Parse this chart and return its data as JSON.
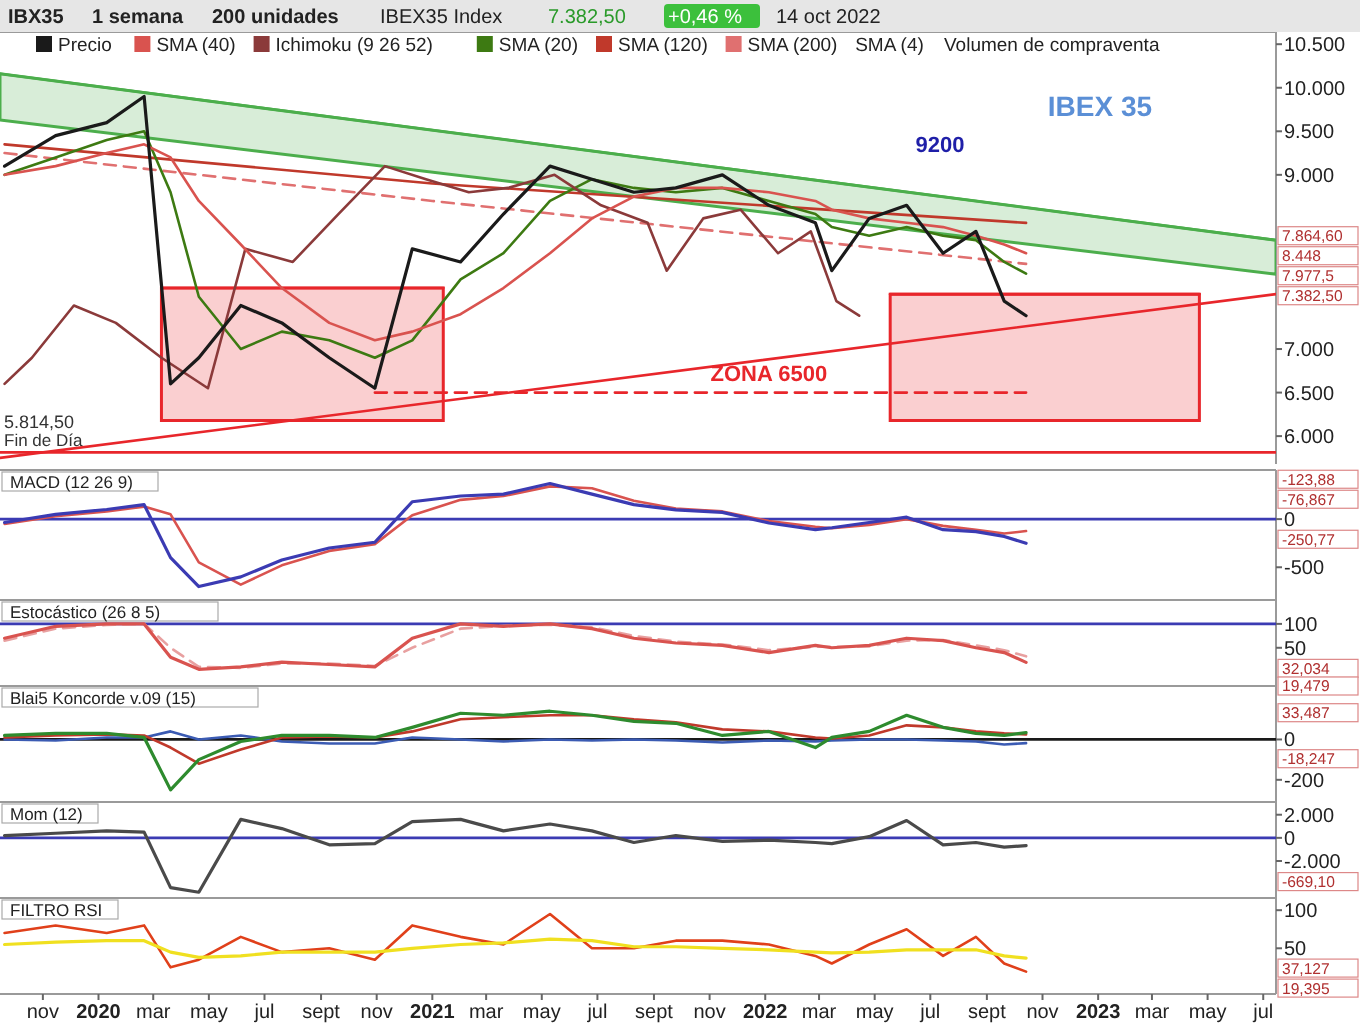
{
  "chart_data": [
    {
      "type": "line",
      "title": "IBEX 35",
      "subtitle": "Fin de Día",
      "legend": "top left",
      "tick_labels": "y",
      "xlim": [
        "2019-09-15",
        "2023-07-15"
      ],
      "ylim": [
        5680,
        10640
      ],
      "yticks": [
        {
          "value": 6000,
          "label": "6.000"
        },
        {
          "value": 6500,
          "label": "6.500"
        },
        {
          "value": 7000,
          "label": "7.000"
        },
        {
          "value": 9000,
          "label": "9.000"
        },
        {
          "value": 9500,
          "label": "9.500"
        },
        {
          "value": 10000,
          "label": "10.000"
        },
        {
          "value": 10500,
          "label": "10.500"
        }
      ],
      "x": [
        "2019-09-20",
        "2019-11-15",
        "2020-01-10",
        "2020-02-20",
        "2020-03-20",
        "2020-04-20",
        "2020-06-05",
        "2020-07-20",
        "2020-09-10",
        "2020-10-30",
        "2020-12-10",
        "2021-02-01",
        "2021-03-20",
        "2021-05-10",
        "2021-06-25",
        "2021-08-10",
        "2021-09-25",
        "2021-11-15",
        "2022-01-05",
        "2022-02-25",
        "2022-03-15",
        "2022-04-25",
        "2022-06-05",
        "2022-07-15",
        "2022-08-20",
        "2022-09-20",
        "2022-10-14"
      ],
      "series": [
        {
          "name": "Precio",
          "color": "#1a1a1a",
          "values": [
            9100,
            9450,
            9600,
            9900,
            6600,
            6900,
            7500,
            7300,
            6900,
            6550,
            8150,
            8000,
            8550,
            9100,
            8950,
            8800,
            8850,
            9000,
            8650,
            8450,
            7900,
            8500,
            8650,
            8100,
            8350,
            7550,
            7382.5
          ]
        },
        {
          "name": "SMA (40)",
          "color": "#d9534f",
          "values": [
            9000,
            9100,
            9250,
            9350,
            9200,
            8700,
            8200,
            7700,
            7300,
            7100,
            7200,
            7400,
            7700,
            8100,
            8500,
            8750,
            8850,
            8850,
            8800,
            8700,
            8600,
            8500,
            8450,
            8400,
            8300,
            8200,
            8100
          ]
        },
        {
          "name": "Ichimoku (9 26 52)",
          "color": "#8b3a3a",
          "x": [
            "2019-09-20",
            "2019-10-20",
            "2019-12-05",
            "2020-01-20",
            "2020-03-10",
            "2020-04-30",
            "2020-06-10",
            "2020-08-01",
            "2020-09-20",
            "2020-11-10",
            "2020-12-25",
            "2021-02-10",
            "2021-03-25",
            "2021-05-15",
            "2021-07-05",
            "2021-08-25",
            "2021-09-15",
            "2021-10-25",
            "2021-12-05",
            "2022-01-15",
            "2022-02-20",
            "2022-03-20",
            "2022-04-14"
          ],
          "values": [
            6600,
            6900,
            7500,
            7300,
            6900,
            6550,
            8150,
            8000,
            8550,
            9100,
            8950,
            8800,
            8850,
            9000,
            8650,
            8450,
            7900,
            8500,
            8600,
            8100,
            8350,
            7550,
            7382.5
          ]
        },
        {
          "name": "SMA (20)",
          "color": "#3d7a12",
          "values": [
            9000,
            9200,
            9400,
            9500,
            8800,
            7600,
            7000,
            7200,
            7100,
            6900,
            7100,
            7800,
            8100,
            8700,
            8950,
            8850,
            8800,
            8850,
            8700,
            8550,
            8400,
            8300,
            8400,
            8300,
            8250,
            8000,
            7864.6
          ]
        },
        {
          "name": "SMA (120)",
          "color": "#c0392b",
          "x": [
            "2019-09-20",
            "2021-01-01",
            "2022-10-14"
          ],
          "values": [
            9350,
            8900,
            8448
          ]
        },
        {
          "name": "SMA (200)",
          "color": "#e07070",
          "line_style": "dashed",
          "x": [
            "2019-09-20",
            "2021-01-01",
            "2022-10-14"
          ],
          "values": [
            9250,
            8700,
            7977.5
          ]
        },
        {
          "color": "#4cae4c",
          "x": [
            "2019-09-15",
            "2023-07-15"
          ],
          "values": [
            10160,
            8250
          ],
          "lower": [
            9630,
            7860
          ],
          "upper": [
            10160,
            8250
          ]
        },
        {
          "color": "#e8262b",
          "x": [
            "2019-09-15",
            "2023-07-15"
          ],
          "values": [
            5750,
            7630
          ]
        },
        {
          "color": "#e8262b",
          "x": [
            "2020-03-10",
            "2021-01-13"
          ],
          "values": [
            7700,
            7700
          ],
          "lower": [
            6180,
            6180
          ],
          "upper": [
            7700,
            7700
          ]
        },
        {
          "color": "#e8262b",
          "x": [
            "2022-05-18",
            "2023-04-22"
          ],
          "values": [
            7630,
            7630
          ],
          "lower": [
            6180,
            6180
          ],
          "upper": [
            7630,
            7630
          ]
        },
        {
          "color": "#e8262b",
          "line_style": "dashed",
          "x": [
            "2020-10-30",
            "2022-10-14"
          ],
          "values": [
            6500,
            6500
          ]
        }
      ],
      "ref_lines": [
        {
          "axis": "y",
          "value": 5814.5,
          "label": "5.814,50",
          "color": "#e8262b"
        }
      ],
      "annotations": [
        "IBX35",
        "1 semana",
        "200 unidades",
        "IBEX35 Index",
        "7.382,50",
        "+0,46 %",
        "14 oct 2022",
        "SMA (4)",
        "Volumen de compraventa",
        "9200",
        "8.448",
        "7.977,5",
        "7.864,60",
        "7.382,50",
        {
          "text": "ZONA 6500",
          "x": "2022-01-05",
          "y": 6500
        }
      ]
    },
    {
      "type": "line",
      "title": "MACD (12 26 9)",
      "tick_labels": "y",
      "xlim": [
        "2019-09-15",
        "2023-07-15"
      ],
      "ylim": [
        -840,
        510
      ],
      "yticks": [
        {
          "value": -500,
          "label": "-500"
        },
        0
      ],
      "x": [
        "2019-09-20",
        "2019-11-15",
        "2020-01-10",
        "2020-02-20",
        "2020-03-20",
        "2020-04-20",
        "2020-06-05",
        "2020-07-20",
        "2020-09-10",
        "2020-10-30",
        "2020-12-10",
        "2021-02-01",
        "2021-03-20",
        "2021-05-10",
        "2021-06-25",
        "2021-08-10",
        "2021-09-25",
        "2021-11-15",
        "2022-01-05",
        "2022-02-25",
        "2022-03-15",
        "2022-04-25",
        "2022-06-05",
        "2022-07-15",
        "2022-08-20",
        "2022-09-20",
        "2022-10-14"
      ],
      "series": [
        {
          "color": "#3b3bb3",
          "values": [
            -35,
            50,
            100,
            150,
            -400,
            -700,
            -600,
            -425,
            -300,
            -240,
            180,
            240,
            260,
            370,
            260,
            150,
            95,
            70,
            -40,
            -110,
            -90,
            -35,
            20,
            -110,
            -130,
            -180,
            -250.77
          ]
        },
        {
          "color": "#d9534f",
          "values": [
            -50,
            30,
            80,
            130,
            50,
            -450,
            -680,
            -480,
            -330,
            -260,
            40,
            200,
            240,
            340,
            320,
            190,
            110,
            80,
            -20,
            -80,
            -95,
            -60,
            0,
            -70,
            -110,
            -150,
            -123.88
          ]
        }
      ],
      "ref_lines": [
        {
          "axis": "y",
          "value": 0,
          "color": "#3b3bb3"
        }
      ],
      "annotations": [
        "-76,867",
        "-123,88",
        "-250,77"
      ]
    },
    {
      "type": "line",
      "title": "Estocástico (26 8 5)",
      "tick_labels": "y",
      "xlim": [
        "2019-09-15",
        "2023-07-15"
      ],
      "ylim": [
        -30,
        150
      ],
      "yticks": [
        50,
        100
      ],
      "x": [
        "2019-09-20",
        "2019-11-15",
        "2020-01-10",
        "2020-02-20",
        "2020-03-20",
        "2020-04-20",
        "2020-06-05",
        "2020-07-20",
        "2020-09-10",
        "2020-10-30",
        "2020-12-10",
        "2021-02-01",
        "2021-03-20",
        "2021-05-10",
        "2021-06-25",
        "2021-08-10",
        "2021-09-25",
        "2021-11-15",
        "2022-01-05",
        "2022-02-25",
        "2022-03-15",
        "2022-04-25",
        "2022-06-05",
        "2022-07-15",
        "2022-08-20",
        "2022-09-20",
        "2022-10-14"
      ],
      "series": [
        {
          "color": "#d9534f",
          "values": [
            70,
            95,
            100,
            100,
            30,
            5,
            10,
            20,
            15,
            10,
            70,
            100,
            95,
            100,
            90,
            70,
            60,
            55,
            40,
            55,
            50,
            55,
            70,
            65,
            50,
            40,
            19.479
          ]
        },
        {
          "color": "#e8a0a0",
          "line_style": "dashed",
          "values": [
            65,
            90,
            98,
            100,
            50,
            10,
            8,
            17,
            17,
            12,
            50,
            90,
            96,
            98,
            93,
            75,
            63,
            57,
            45,
            52,
            52,
            53,
            65,
            66,
            55,
            45,
            32.034
          ]
        }
      ],
      "ref_lines": [
        {
          "axis": "y",
          "value": 100,
          "color": "#3b3bb3"
        }
      ],
      "annotations": [
        "32,034",
        "19,479"
      ]
    },
    {
      "type": "line",
      "title": "Blai5 Koncorde v.09 (15)",
      "tick_labels": "y",
      "xlim": [
        "2019-09-15",
        "2023-07-15"
      ],
      "ylim": [
        -310,
        265
      ],
      "yticks": [
        {
          "value": -200,
          "label": "-200"
        },
        0
      ],
      "x": [
        "2019-09-20",
        "2019-11-15",
        "2020-01-10",
        "2020-02-20",
        "2020-03-20",
        "2020-04-20",
        "2020-06-05",
        "2020-07-20",
        "2020-09-10",
        "2020-10-30",
        "2020-12-10",
        "2021-02-01",
        "2021-03-20",
        "2021-05-10",
        "2021-06-25",
        "2021-08-10",
        "2021-09-25",
        "2021-11-15",
        "2022-01-05",
        "2022-02-25",
        "2022-03-15",
        "2022-04-25",
        "2022-06-05",
        "2022-07-15",
        "2022-08-20",
        "2022-09-20",
        "2022-10-14"
      ],
      "series": [
        {
          "color": "#2e8b2e",
          "values": [
            20,
            30,
            30,
            10,
            -250,
            -100,
            -10,
            20,
            20,
            10,
            60,
            130,
            120,
            140,
            120,
            90,
            80,
            20,
            40,
            -40,
            10,
            40,
            120,
            60,
            30,
            20,
            33.487
          ]
        },
        {
          "color": "#c0392b",
          "values": [
            10,
            20,
            25,
            20,
            -40,
            -120,
            -50,
            10,
            15,
            10,
            40,
            100,
            110,
            120,
            120,
            100,
            85,
            50,
            40,
            10,
            5,
            20,
            70,
            60,
            40,
            30,
            25
          ]
        },
        {
          "color": "#3b5bb3",
          "values": [
            0,
            -5,
            10,
            10,
            40,
            0,
            20,
            -10,
            -20,
            -20,
            10,
            0,
            -10,
            0,
            -5,
            0,
            -5,
            -15,
            -5,
            -10,
            -5,
            0,
            0,
            -5,
            -10,
            -25,
            -18.247
          ]
        }
      ],
      "ref_lines": [
        {
          "axis": "y",
          "value": 0,
          "color": "#1a1a1a"
        }
      ],
      "annotations": [
        "33,487",
        "-18,247"
      ]
    },
    {
      "type": "line",
      "title": "Mom (12)",
      "tick_labels": "y",
      "xlim": [
        "2019-09-15",
        "2023-07-15"
      ],
      "ylim": [
        -5200,
        3100
      ],
      "yticks": [
        {
          "value": -2000,
          "label": "-2.000"
        },
        0,
        {
          "value": 2000,
          "label": "2.000"
        }
      ],
      "x": [
        "2019-09-20",
        "2019-11-15",
        "2020-01-10",
        "2020-02-20",
        "2020-03-20",
        "2020-04-20",
        "2020-06-05",
        "2020-07-20",
        "2020-09-10",
        "2020-10-30",
        "2020-12-10",
        "2021-02-01",
        "2021-03-20",
        "2021-05-10",
        "2021-06-25",
        "2021-08-10",
        "2021-09-25",
        "2021-11-15",
        "2022-01-05",
        "2022-02-25",
        "2022-03-15",
        "2022-04-25",
        "2022-06-05",
        "2022-07-15",
        "2022-08-20",
        "2022-09-20",
        "2022-10-14"
      ],
      "series": [
        {
          "color": "#4a4a4a",
          "values": [
            200,
            400,
            600,
            500,
            -4300,
            -4700,
            1600,
            800,
            -600,
            -500,
            1400,
            1600,
            600,
            1200,
            600,
            -400,
            200,
            -300,
            -200,
            -400,
            -500,
            100,
            1500,
            -600,
            -400,
            -800,
            -669.1
          ]
        }
      ],
      "ref_lines": [
        {
          "axis": "y",
          "value": 0,
          "color": "#3b3bb3"
        }
      ],
      "annotations": [
        "-669,10"
      ]
    },
    {
      "type": "line",
      "title": "FILTRO RSI",
      "xlim": [
        "2019-09-15",
        "2023-07-15"
      ],
      "ylim": [
        -10,
        116
      ],
      "yticks": [
        50,
        100
      ],
      "xticks": [
        {
          "value": "2019-11-01",
          "label": "nov"
        },
        {
          "value": "2020-01-01",
          "label": "2020"
        },
        {
          "value": "2020-03-01",
          "label": "mar"
        },
        {
          "value": "2020-05-01",
          "label": "may"
        },
        {
          "value": "2020-07-01",
          "label": "jul"
        },
        {
          "value": "2020-09-01",
          "label": "sept"
        },
        {
          "value": "2020-11-01",
          "label": "nov"
        },
        {
          "value": "2021-01-01",
          "label": "2021"
        },
        {
          "value": "2021-03-01",
          "label": "mar"
        },
        {
          "value": "2021-05-01",
          "label": "may"
        },
        {
          "value": "2021-07-01",
          "label": "jul"
        },
        {
          "value": "2021-09-01",
          "label": "sept"
        },
        {
          "value": "2021-11-01",
          "label": "nov"
        },
        {
          "value": "2022-01-01",
          "label": "2022"
        },
        {
          "value": "2022-03-01",
          "label": "mar"
        },
        {
          "value": "2022-05-01",
          "label": "may"
        },
        {
          "value": "2022-07-01",
          "label": "jul"
        },
        {
          "value": "2022-09-01",
          "label": "sept"
        },
        {
          "value": "2022-11-01",
          "label": "nov"
        },
        {
          "value": "2023-01-01",
          "label": "2023"
        },
        {
          "value": "2023-03-01",
          "label": "mar"
        },
        {
          "value": "2023-05-01",
          "label": "may"
        },
        {
          "value": "2023-07-01",
          "label": "jul"
        }
      ],
      "x": [
        "2019-09-20",
        "2019-11-15",
        "2020-01-10",
        "2020-02-20",
        "2020-03-20",
        "2020-04-20",
        "2020-06-05",
        "2020-07-20",
        "2020-09-10",
        "2020-10-30",
        "2020-12-10",
        "2021-02-01",
        "2021-03-20",
        "2021-05-10",
        "2021-06-25",
        "2021-08-10",
        "2021-09-25",
        "2021-11-15",
        "2022-01-05",
        "2022-02-25",
        "2022-03-15",
        "2022-04-25",
        "2022-06-05",
        "2022-07-15",
        "2022-08-20",
        "2022-09-20",
        "2022-10-14"
      ],
      "series": [
        {
          "color": "#f0e020",
          "values": [
            55,
            58,
            60,
            60,
            45,
            38,
            40,
            45,
            45,
            45,
            50,
            55,
            57,
            62,
            60,
            52,
            52,
            50,
            48,
            45,
            44,
            45,
            48,
            48,
            48,
            40,
            37.127
          ]
        },
        {
          "color": "#e0401a",
          "values": [
            70,
            80,
            70,
            80,
            25,
            35,
            65,
            45,
            50,
            35,
            80,
            65,
            55,
            95,
            50,
            50,
            60,
            60,
            55,
            40,
            30,
            55,
            75,
            40,
            65,
            30,
            19.395
          ]
        }
      ],
      "annotations": [
        "37,127",
        "19,395"
      ]
    }
  ]
}
